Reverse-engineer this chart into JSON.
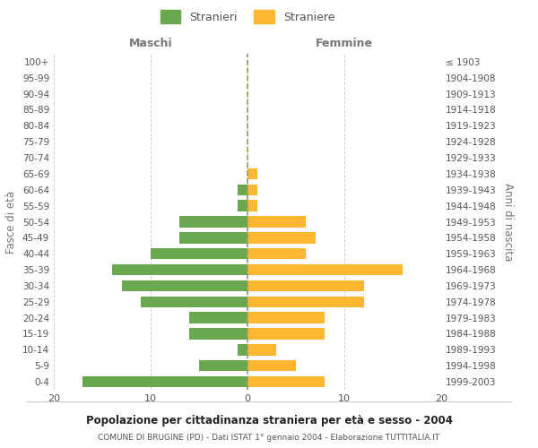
{
  "age_groups": [
    "0-4",
    "5-9",
    "10-14",
    "15-19",
    "20-24",
    "25-29",
    "30-34",
    "35-39",
    "40-44",
    "45-49",
    "50-54",
    "55-59",
    "60-64",
    "65-69",
    "70-74",
    "75-79",
    "80-84",
    "85-89",
    "90-94",
    "95-99",
    "100+"
  ],
  "birth_years": [
    "1999-2003",
    "1994-1998",
    "1989-1993",
    "1984-1988",
    "1979-1983",
    "1974-1978",
    "1969-1973",
    "1964-1968",
    "1959-1963",
    "1954-1958",
    "1949-1953",
    "1944-1948",
    "1939-1943",
    "1934-1938",
    "1929-1933",
    "1924-1928",
    "1919-1923",
    "1914-1918",
    "1909-1913",
    "1904-1908",
    "≤ 1903"
  ],
  "maschi": [
    17,
    5,
    1,
    6,
    6,
    11,
    13,
    14,
    10,
    7,
    7,
    1,
    1,
    0,
    0,
    0,
    0,
    0,
    0,
    0,
    0
  ],
  "femmine": [
    8,
    5,
    3,
    8,
    8,
    12,
    12,
    16,
    6,
    7,
    6,
    1,
    1,
    1,
    0,
    0,
    0,
    0,
    0,
    0,
    0
  ],
  "maschi_color": "#6aa84f",
  "femmine_color": "#ffb732",
  "title_main": "Popolazione per cittadinanza straniera per età e sesso - 2004",
  "title_sub": "COMUNE DI BRUGINE (PD) - Dati ISTAT 1° gennaio 2004 - Elaborazione TUTTITALIA.IT",
  "xlabel_left": "Maschi",
  "xlabel_right": "Femmine",
  "ylabel_left": "Fasce di età",
  "ylabel_right": "Anni di nascita",
  "legend_maschi": "Stranieri",
  "legend_femmine": "Straniere",
  "xlim": 20,
  "background_color": "#ffffff",
  "grid_color": "#cccccc"
}
